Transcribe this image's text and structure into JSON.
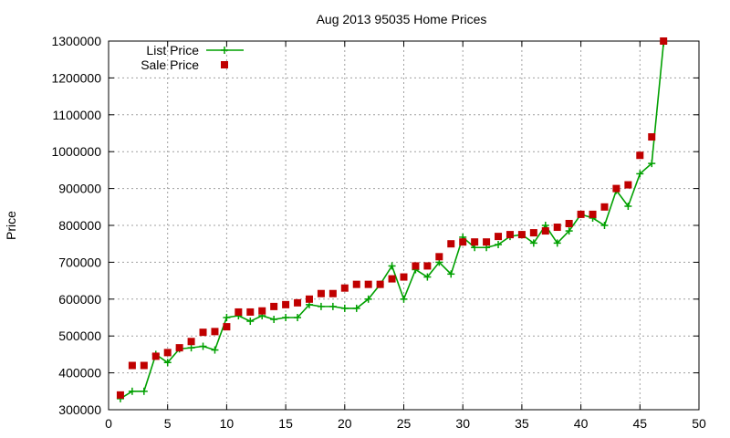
{
  "chart_data": {
    "type": "line",
    "title": "Aug 2013 95035 Home Prices",
    "xlabel": "",
    "ylabel": "Price",
    "xlim": [
      0,
      50
    ],
    "ylim": [
      300000,
      1300000
    ],
    "xticks": [
      0,
      5,
      10,
      15,
      20,
      25,
      30,
      35,
      40,
      45,
      50
    ],
    "yticks": [
      300000,
      400000,
      500000,
      600000,
      700000,
      800000,
      900000,
      1000000,
      1100000,
      1200000,
      1300000
    ],
    "grid": true,
    "legend_position": "top-left",
    "x": [
      1,
      2,
      3,
      4,
      5,
      6,
      7,
      8,
      9,
      10,
      11,
      12,
      13,
      14,
      15,
      16,
      17,
      18,
      19,
      20,
      21,
      22,
      23,
      24,
      25,
      26,
      27,
      28,
      29,
      30,
      31,
      32,
      33,
      34,
      35,
      36,
      37,
      38,
      39,
      40,
      41,
      42,
      43,
      44,
      45,
      46,
      47
    ],
    "series": [
      {
        "name": "List Price",
        "style": "line-plus",
        "color": "#00a000",
        "values": [
          330000,
          350000,
          350000,
          450000,
          428000,
          465000,
          468000,
          472000,
          462000,
          550000,
          555000,
          540000,
          555000,
          545000,
          550000,
          550000,
          585000,
          580000,
          580000,
          575000,
          575000,
          600000,
          640000,
          690000,
          600000,
          680000,
          660000,
          700000,
          668000,
          768000,
          740000,
          740000,
          748000,
          770000,
          775000,
          752000,
          800000,
          752000,
          785000,
          830000,
          820000,
          800000,
          895000,
          852000,
          940000,
          968000,
          1295000
        ]
      },
      {
        "name": "Sale Price",
        "style": "square-markers",
        "color": "#c00000",
        "values": [
          340000,
          420000,
          420000,
          445000,
          455000,
          468000,
          485000,
          510000,
          512000,
          525000,
          565000,
          565000,
          568000,
          580000,
          585000,
          590000,
          600000,
          615000,
          615000,
          630000,
          640000,
          640000,
          640000,
          655000,
          660000,
          690000,
          690000,
          715000,
          750000,
          755000,
          755000,
          755000,
          770000,
          775000,
          775000,
          780000,
          785000,
          795000,
          805000,
          830000,
          830000,
          850000,
          900000,
          910000,
          990000,
          1040000,
          1300000
        ]
      }
    ]
  }
}
